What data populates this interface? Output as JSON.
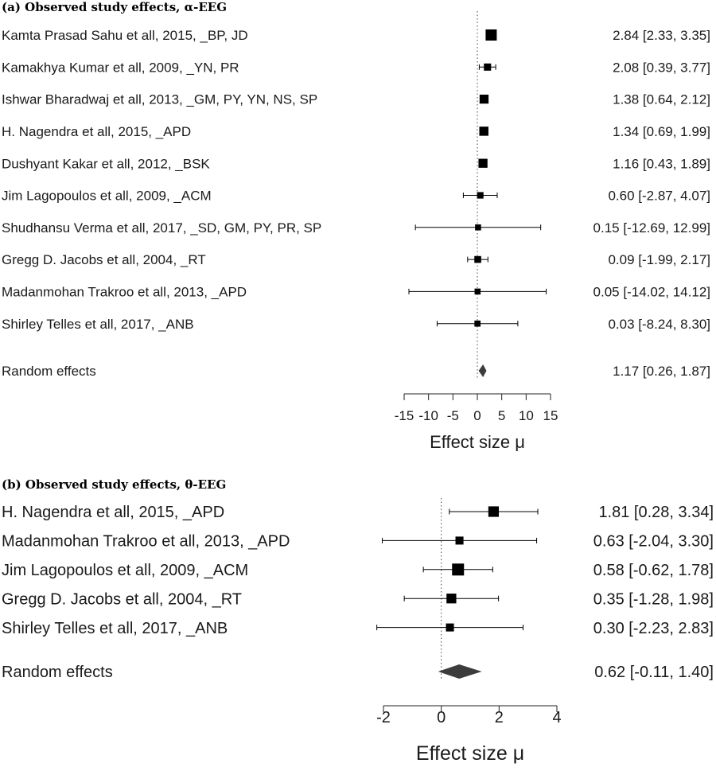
{
  "chart_data": [
    {
      "type": "forest",
      "title": "(a) Observed study effects, α-EEG",
      "xlabel": "Effect size μ",
      "xlim": [
        -15,
        15
      ],
      "ticks": [
        -15,
        -10,
        -5,
        0,
        5,
        10,
        15
      ],
      "tick_labels": [
        "-15",
        "-10",
        "-5",
        "0",
        "5",
        "10",
        "15"
      ],
      "reference_line": 0,
      "studies": [
        {
          "label": "Kamta Prasad Sahu et all, 2015, _BP, JD",
          "estimate": 2.84,
          "lower": 2.33,
          "upper": 3.35,
          "ci_text": "2.84 [2.33, 3.35]",
          "weight": 1.0
        },
        {
          "label": "Kamakhya Kumar et all, 2009, _YN, PR",
          "estimate": 2.08,
          "lower": 0.39,
          "upper": 3.77,
          "ci_text": "2.08 [0.39, 3.77]",
          "weight": 0.45
        },
        {
          "label": "Ishwar Bharadwaj et all, 2013, _GM, PY, YN, NS, SP",
          "estimate": 1.38,
          "lower": 0.64,
          "upper": 2.12,
          "ci_text": "1.38 [0.64, 2.12]",
          "weight": 0.7
        },
        {
          "label": "H. Nagendra et all, 2015, _APD",
          "estimate": 1.34,
          "lower": 0.69,
          "upper": 1.99,
          "ci_text": "1.34 [0.69, 1.99]",
          "weight": 0.72
        },
        {
          "label": "Dushyant Kakar et all, 2012, _BSK",
          "estimate": 1.16,
          "lower": 0.43,
          "upper": 1.89,
          "ci_text": "1.16 [0.43, 1.89]",
          "weight": 0.7
        },
        {
          "label": "Jim Lagopoulos et all, 2009, _ACM",
          "estimate": 0.6,
          "lower": -2.87,
          "upper": 4.07,
          "ci_text": "0.60 [-2.87, 4.07]",
          "weight": 0.35
        },
        {
          "label": "Shudhansu Verma et all, 2017, _SD, GM, PY, PR, SP",
          "estimate": 0.15,
          "lower": -12.69,
          "upper": 12.99,
          "ci_text": "0.15 [-12.69, 12.99]",
          "weight": 0.28
        },
        {
          "label": "Gregg D. Jacobs et all, 2004, _RT",
          "estimate": 0.09,
          "lower": -1.99,
          "upper": 2.17,
          "ci_text": "0.09 [-1.99, 2.17]",
          "weight": 0.4
        },
        {
          "label": "Madanmohan Trakroo et all, 2013, _APD",
          "estimate": 0.05,
          "lower": -14.02,
          "upper": 14.12,
          "ci_text": "0.05 [-14.02, 14.12]",
          "weight": 0.28
        },
        {
          "label": "Shirley Telles et all, 2017, _ANB",
          "estimate": 0.03,
          "lower": -8.24,
          "upper": 8.3,
          "ci_text": "0.03 [-8.24, 8.30]",
          "weight": 0.3
        }
      ],
      "summary": {
        "label": "Random effects",
        "estimate": 1.17,
        "lower": 0.26,
        "upper": 1.87,
        "ci_text": "1.17 [0.26, 1.87]"
      }
    },
    {
      "type": "forest",
      "title": "(b) Observed study effects, θ-EEG",
      "xlabel": "Effect size μ",
      "xlim": [
        -2,
        4
      ],
      "ticks": [
        -2,
        0,
        2,
        4
      ],
      "tick_labels": [
        "-2",
        "0",
        "2",
        "4"
      ],
      "reference_line": 0,
      "studies": [
        {
          "label": "H. Nagendra et all, 2015, _APD",
          "estimate": 1.81,
          "lower": 0.28,
          "upper": 3.34,
          "ci_text": "1.81 [0.28, 3.34]",
          "weight": 0.8
        },
        {
          "label": "Madanmohan Trakroo et all, 2013, _APD",
          "estimate": 0.63,
          "lower": -2.04,
          "upper": 3.3,
          "ci_text": "0.63 [-2.04, 3.30]",
          "weight": 0.45
        },
        {
          "label": "Jim Lagopoulos et all, 2009, _ACM",
          "estimate": 0.58,
          "lower": -0.62,
          "upper": 1.78,
          "ci_text": "0.58 [-0.62, 1.78]",
          "weight": 1.0
        },
        {
          "label": "Gregg D. Jacobs et all, 2004, _RT",
          "estimate": 0.35,
          "lower": -1.28,
          "upper": 1.98,
          "ci_text": "0.35 [-1.28, 1.98]",
          "weight": 0.7
        },
        {
          "label": "Shirley Telles et all, 2017, _ANB",
          "estimate": 0.3,
          "lower": -2.23,
          "upper": 2.83,
          "ci_text": "0.30 [-2.23, 2.83]",
          "weight": 0.45
        }
      ],
      "summary": {
        "label": "Random effects",
        "estimate": 0.62,
        "lower": -0.11,
        "upper": 1.4,
        "ci_text": "0.62 [-0.11, 1.40]"
      }
    }
  ],
  "colors": {
    "text": "#1a1a1a",
    "marker": "#000000",
    "summary_diamond": "#3c3c3c"
  }
}
